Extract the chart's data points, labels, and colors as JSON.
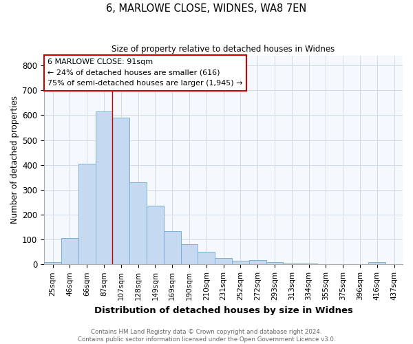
{
  "title": "6, MARLOWE CLOSE, WIDNES, WA8 7EN",
  "subtitle": "Size of property relative to detached houses in Widnes",
  "xlabel": "Distribution of detached houses by size in Widnes",
  "ylabel": "Number of detached properties",
  "footer_line1": "Contains HM Land Registry data © Crown copyright and database right 2024.",
  "footer_line2": "Contains public sector information licensed under the Open Government Licence v3.0.",
  "bar_labels": [
    "25sqm",
    "46sqm",
    "66sqm",
    "87sqm",
    "107sqm",
    "128sqm",
    "149sqm",
    "169sqm",
    "190sqm",
    "210sqm",
    "231sqm",
    "252sqm",
    "272sqm",
    "293sqm",
    "313sqm",
    "334sqm",
    "355sqm",
    "375sqm",
    "396sqm",
    "416sqm",
    "437sqm"
  ],
  "bar_values": [
    8,
    107,
    405,
    615,
    590,
    330,
    237,
    135,
    80,
    52,
    25,
    16,
    18,
    8,
    5,
    3,
    2,
    1,
    0,
    8,
    0
  ],
  "bar_color": "#c5d9f0",
  "bar_edgecolor": "#7aafd4",
  "ylim": [
    0,
    840
  ],
  "yticks": [
    0,
    100,
    200,
    300,
    400,
    500,
    600,
    700,
    800
  ],
  "red_line_x": 3.5,
  "annotation_text_line1": "6 MARLOWE CLOSE: 91sqm",
  "annotation_text_line2": "← 24% of detached houses are smaller (616)",
  "annotation_text_line3": "75% of semi-detached houses are larger (1,945) →",
  "annotation_box_facecolor": "#ffffff",
  "annotation_box_edgecolor": "#cc0000",
  "grid_color": "#d0dce8",
  "background_color": "#ffffff",
  "ax_background_color": "#f5f8fc"
}
